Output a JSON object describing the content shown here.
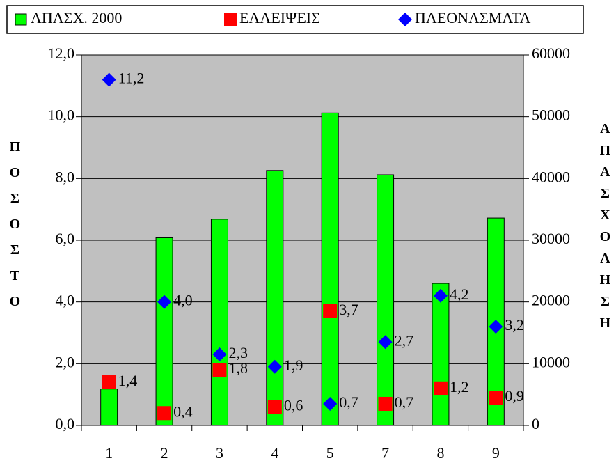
{
  "chart_data": {
    "type": "bar",
    "categories": [
      "1",
      "2",
      "3",
      "4",
      "5",
      "7",
      "8",
      "9"
    ],
    "ylabel": "ΠΟΣΟΣΤΟ",
    "y2label": "ΑΠΑΣΧΟΛΗΣΗ",
    "ylim": [
      0,
      12
    ],
    "yticks": [
      {
        "value": 0,
        "label": "0,0"
      },
      {
        "value": 2,
        "label": "2,0"
      },
      {
        "value": 4,
        "label": "4,0"
      },
      {
        "value": 6,
        "label": "6,0"
      },
      {
        "value": 8,
        "label": "8,0"
      },
      {
        "value": 10,
        "label": "10,0"
      },
      {
        "value": 12,
        "label": "12,0"
      }
    ],
    "y2lim": [
      0,
      60000
    ],
    "y2ticks": [
      0,
      10000,
      20000,
      30000,
      40000,
      50000,
      60000
    ],
    "grid": true,
    "legend": "top",
    "background": "#c0c0c0",
    "series": [
      {
        "name": "ΑΠΑΣΧ. 2000",
        "type": "bar",
        "axis": "y2",
        "color": "#00ff00",
        "values": [
          5900,
          30400,
          33400,
          41300,
          50600,
          40600,
          23000,
          33600
        ]
      },
      {
        "name": "ΕΛΛΕΙΨΕΙΣ",
        "type": "scatter",
        "marker": "square",
        "color": "#ff0000",
        "values": [
          1.4,
          0.4,
          1.8,
          0.6,
          3.7,
          0.7,
          1.2,
          0.9
        ],
        "value_labels": [
          "1,4",
          "0,4",
          "1,8",
          "0,6",
          "3,7",
          "0,7",
          "1,2",
          "0,9"
        ]
      },
      {
        "name": "ΠΛΕΟΝΑΣΜΑΤΑ",
        "type": "scatter",
        "marker": "diamond",
        "color": "#0000ff",
        "values": [
          11.2,
          4.0,
          2.3,
          1.9,
          0.7,
          2.7,
          4.2,
          3.2
        ],
        "value_labels": [
          "11,2",
          "4,0",
          "2,3",
          "1,9",
          "0,7",
          "2,7",
          "4,2",
          "3,2"
        ]
      }
    ]
  }
}
